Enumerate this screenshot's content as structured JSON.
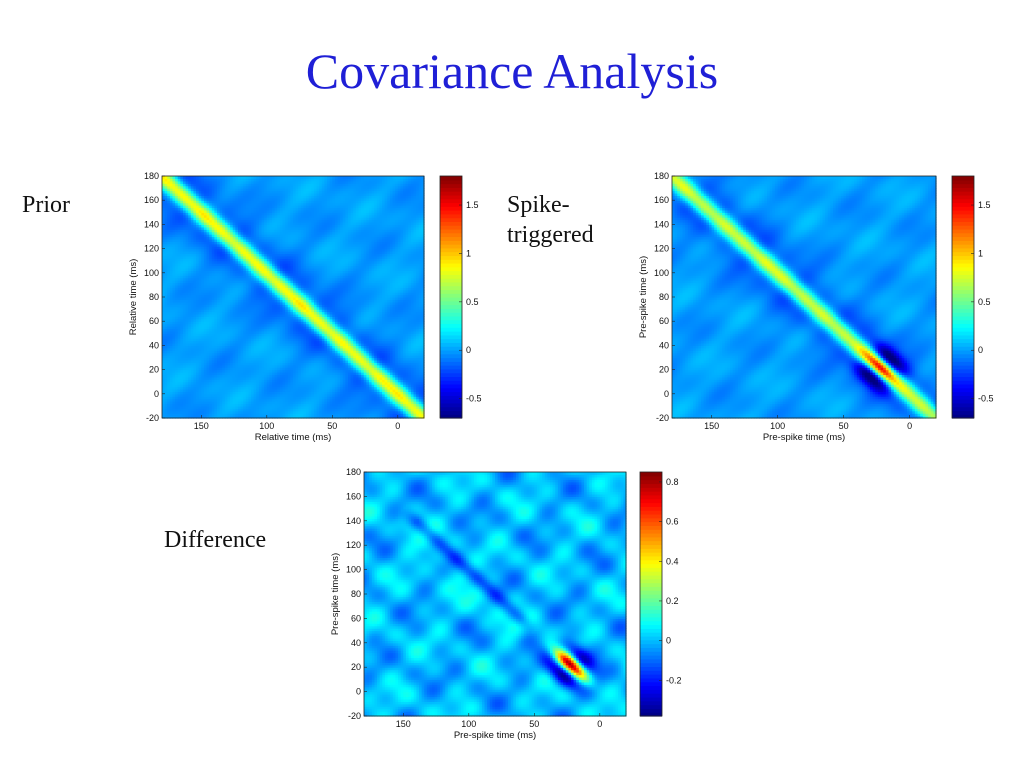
{
  "slide": {
    "title": "Covariance Analysis"
  },
  "chart_data": [
    {
      "type": "heatmap",
      "label": "Prior",
      "x": [
        -20,
        180
      ],
      "y": [
        -20,
        180
      ],
      "xlabel": "Relative time (ms)",
      "ylabel": "Relative time (ms)",
      "xlim": [
        180,
        -20
      ],
      "ylim": [
        -20,
        180
      ],
      "x_ticks": [
        150,
        100,
        50,
        0
      ],
      "y_ticks": [
        180,
        160,
        140,
        120,
        100,
        80,
        60,
        40,
        20,
        0,
        -20
      ],
      "colorbar": {
        "range": [
          -0.7,
          1.8
        ],
        "ticks": [
          "1.5",
          "1",
          "0.5",
          "0",
          "-0.5"
        ],
        "tick_values": [
          1.5,
          1,
          0.5,
          0,
          -0.5
        ]
      },
      "pattern": {
        "baseline": 0,
        "diagonal_peak": 1.1,
        "diagonal_width_ms": 5,
        "trough_value": -0.25,
        "trough_width_ms": 14
      },
      "colormap": "jet"
    },
    {
      "type": "heatmap",
      "label": "Spike-triggered",
      "x": [
        -20,
        180
      ],
      "y": [
        -20,
        180
      ],
      "xlabel": "Pre-spike time (ms)",
      "ylabel": "Pre-spike time (ms)",
      "xlim": [
        180,
        -20
      ],
      "ylim": [
        -20,
        180
      ],
      "x_ticks": [
        150,
        100,
        50,
        0
      ],
      "y_ticks": [
        180,
        160,
        140,
        120,
        100,
        80,
        60,
        40,
        20,
        0,
        -20
      ],
      "colorbar": {
        "range": [
          -0.7,
          1.8
        ],
        "ticks": [
          "1.5",
          "1",
          "0.5",
          "0",
          "-0.5"
        ],
        "tick_values": [
          1.5,
          1,
          0.5,
          0,
          -0.5
        ]
      },
      "pattern": {
        "baseline": 0,
        "diagonal_peak": 1.0,
        "diagonal_width_ms": 5,
        "trough_value": -0.25,
        "trough_width_ms": 14,
        "hotspot_center_ms": 22,
        "hotspot_peak": 1.8,
        "hotspot_along_ms": 8,
        "hotspot_across_ms": 4,
        "hotspot_trough": -0.7
      },
      "colormap": "jet"
    },
    {
      "type": "heatmap",
      "label": "Difference",
      "x": [
        -20,
        180
      ],
      "y": [
        -20,
        180
      ],
      "xlabel": "Pre-spike time (ms)",
      "ylabel": "Pre-spike time (ms)",
      "xlim": [
        180,
        -20
      ],
      "ylim": [
        -20,
        180
      ],
      "x_ticks": [
        150,
        100,
        50,
        0
      ],
      "y_ticks": [
        180,
        160,
        140,
        120,
        100,
        80,
        60,
        40,
        20,
        0,
        -20
      ],
      "colorbar": {
        "range": [
          -0.38,
          0.85
        ],
        "ticks": [
          "0.8",
          "0.6",
          "0.4",
          "0.2",
          "0",
          "-0.2"
        ],
        "tick_values": [
          0.8,
          0.6,
          0.4,
          0.2,
          0,
          -0.2
        ]
      },
      "pattern": {
        "baseline": 0,
        "streak_from_ms": 50,
        "streak_to_ms": 150,
        "streak_value": -0.15,
        "hotspot_center_ms": 22,
        "hotspot_peak": 0.85,
        "hotspot_along_ms": 8,
        "hotspot_across_ms": 4,
        "hotspot_trough": -0.35
      },
      "colormap": "jet"
    }
  ]
}
